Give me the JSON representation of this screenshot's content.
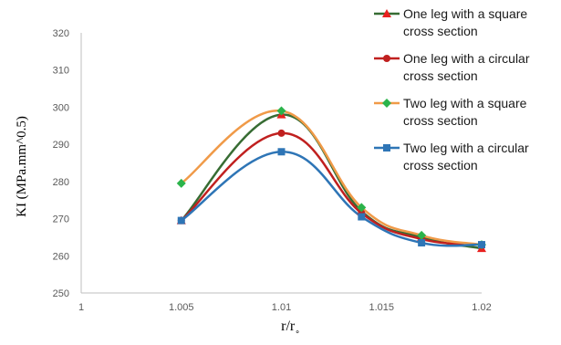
{
  "chart_data": {
    "type": "line",
    "title": "",
    "xlabel": "r/r",
    "xlabel_subscript": "∘",
    "ylabel": "KI (MPa.mm^0.5)",
    "xlim": [
      1,
      1.02
    ],
    "ylim": [
      250,
      320
    ],
    "x_ticks": [
      "1",
      "1.005",
      "1.01",
      "1.015",
      "1.02"
    ],
    "y_ticks": [
      "250",
      "260",
      "270",
      "280",
      "290",
      "300",
      "310",
      "320"
    ],
    "grid": false,
    "legend_position": "top-right",
    "series": [
      {
        "name": [
          "One leg with a square",
          "cross section"
        ],
        "color": "#376C33",
        "marker": "triangle",
        "marker_color": "#E8211F",
        "x": [
          1.005,
          1.01,
          1.014,
          1.017,
          1.02
        ],
        "y": [
          269.5,
          298,
          272,
          265,
          262
        ]
      },
      {
        "name": [
          "One leg with a circular",
          "cross section"
        ],
        "color": "#C0201F",
        "marker": "circle",
        "marker_color": "#C0201F",
        "x": [
          1.005,
          1.01,
          1.014,
          1.017,
          1.02
        ],
        "y": [
          269.5,
          293,
          271.5,
          264.5,
          263
        ]
      },
      {
        "name": [
          "Two leg with a square",
          "cross section"
        ],
        "color": "#F09A48",
        "marker": "diamond",
        "marker_color": "#2BB34A",
        "x": [
          1.005,
          1.01,
          1.014,
          1.017,
          1.02
        ],
        "y": [
          279.5,
          299,
          273,
          265.5,
          263
        ]
      },
      {
        "name": [
          "Two leg with a circular",
          "cross section"
        ],
        "color": "#2E75B6",
        "marker": "square",
        "marker_color": "#2E75B6",
        "x": [
          1.005,
          1.01,
          1.014,
          1.017,
          1.02
        ],
        "y": [
          269.5,
          288,
          270.5,
          263.5,
          263
        ]
      }
    ]
  }
}
